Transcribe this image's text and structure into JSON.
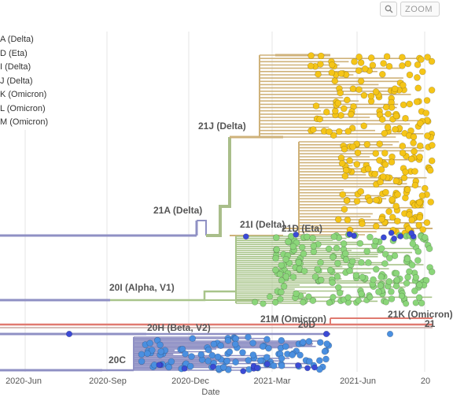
{
  "toolbar": {
    "zoom_label": "ZOOM"
  },
  "legend": [
    "A (Delta)",
    "D (Eta)",
    "I (Delta)",
    "J (Delta)",
    "K (Omicron)",
    "L (Omicron)",
    "M (Omicron)"
  ],
  "clades": {
    "c21J": "21J (Delta)",
    "c21A": "21A (Delta)",
    "c21I": "21I (Delta)",
    "c21D": "21D (Eta)",
    "c20I": "20I (Alpha, V1)",
    "c21M": "21M (Omicron)",
    "c20D": "20D",
    "c21K": "21K (Omicron)",
    "c20H": "20H (Beta, V2)",
    "c20C": "20C",
    "c21L": "21"
  },
  "axis": {
    "title": "Date",
    "ticks": [
      "2020-Jun",
      "2020-Sep",
      "2020-Dec",
      "2021-Mar",
      "2021-Jun",
      "20"
    ]
  },
  "colors": {
    "delta_branch": "#cfb27a",
    "delta_tip": "#f5c518",
    "alpha_branch": "#a8c48a",
    "alpha_tip": "#8bd67a",
    "base_branch": "#8f90c4",
    "clade20C_tip": "#4a8fe0",
    "blue_tip": "#3b4ad6",
    "omicron_branch": "#e07a70",
    "gridline": "#e6e6e6"
  },
  "icons": {
    "zoom": "magnifier-icon"
  }
}
